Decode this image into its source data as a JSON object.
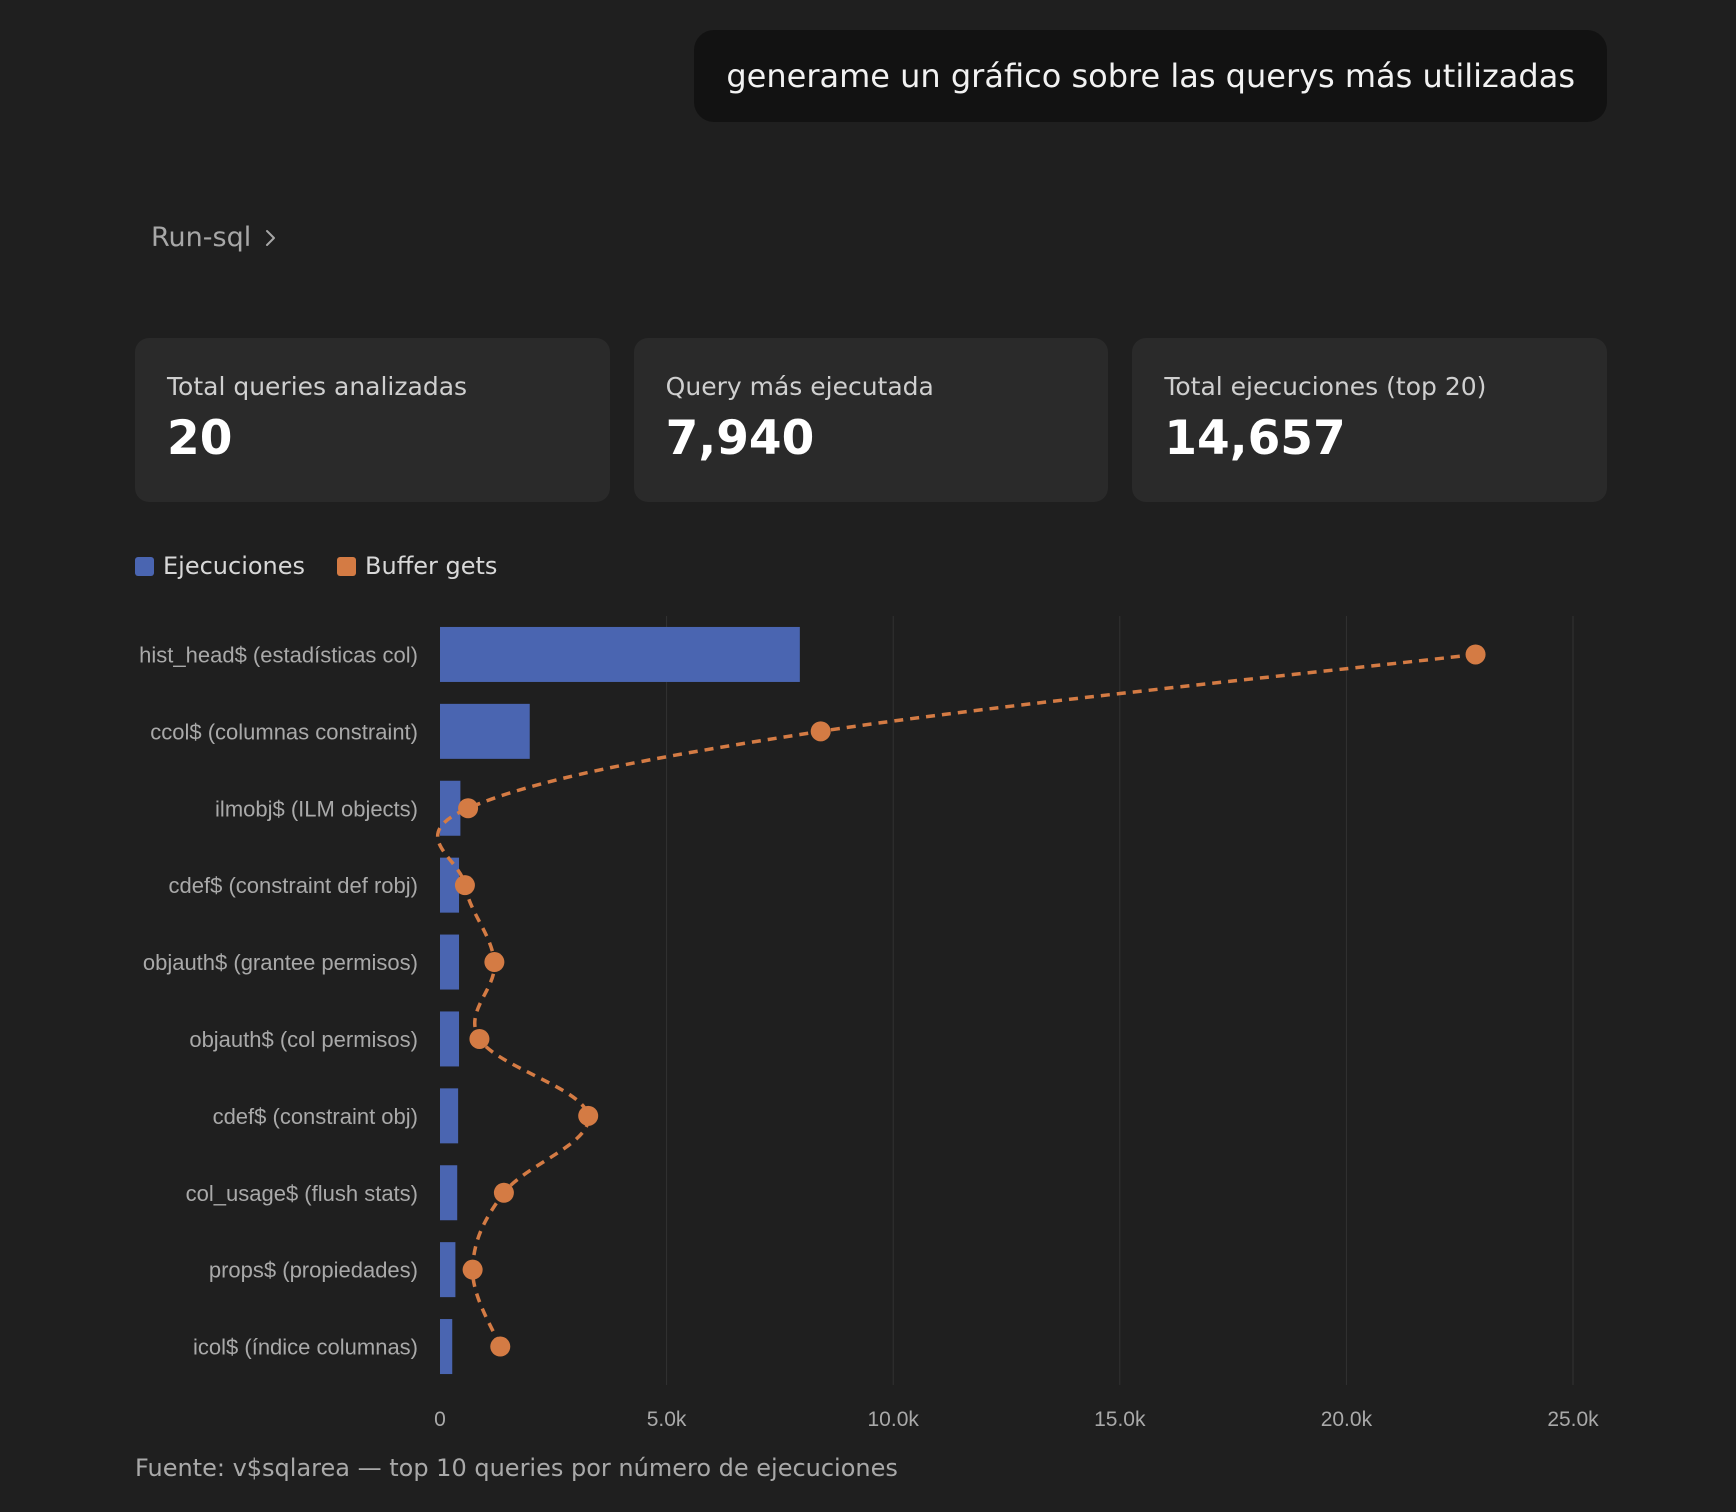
{
  "prompt": "generame un gráfico sobre las querys más utilizadas",
  "tool": {
    "label": "Run-sql"
  },
  "cards": [
    {
      "label": "Total queries analizadas",
      "value": "20"
    },
    {
      "label": "Query más ejecutada",
      "value": "7,940"
    },
    {
      "label": "Total ejecuciones (top 20)",
      "value": "14,657"
    }
  ],
  "colors": {
    "bar": "#4a65b1",
    "line": "#d47b44",
    "grid": "#333333",
    "tick": "#a9a9a9"
  },
  "chart_data": {
    "type": "bar",
    "orientation": "horizontal",
    "categories": [
      "hist_head$ (estadísticas col)",
      "ccol$ (columnas constraint)",
      "ilmobj$ (ILM objects)",
      "cdef$ (constraint def robj)",
      "objauth$ (grantee permisos)",
      "objauth$ (col permisos)",
      "cdef$ (constraint obj)",
      "col_usage$ (flush stats)",
      "props$ (propiedades)",
      "icol$ (índice columnas)"
    ],
    "series": [
      {
        "name": "Ejecuciones",
        "type": "bar",
        "values": [
          7940,
          1980,
          450,
          420,
          420,
          420,
          400,
          380,
          340,
          270
        ]
      },
      {
        "name": "Buffer gets",
        "type": "line",
        "style": "dashed",
        "values": [
          22850,
          8400,
          620,
          550,
          1200,
          870,
          3270,
          1410,
          720,
          1330
        ]
      }
    ],
    "xlim": [
      0,
      25000
    ],
    "xticks": [
      "0",
      "5.0k",
      "10.0k",
      "15.0k",
      "20.0k",
      "25.0k"
    ],
    "grid": "vertical",
    "legend": "top-left",
    "caption": "Fuente: v$sqlarea — top 10 queries por número de ejecuciones"
  }
}
